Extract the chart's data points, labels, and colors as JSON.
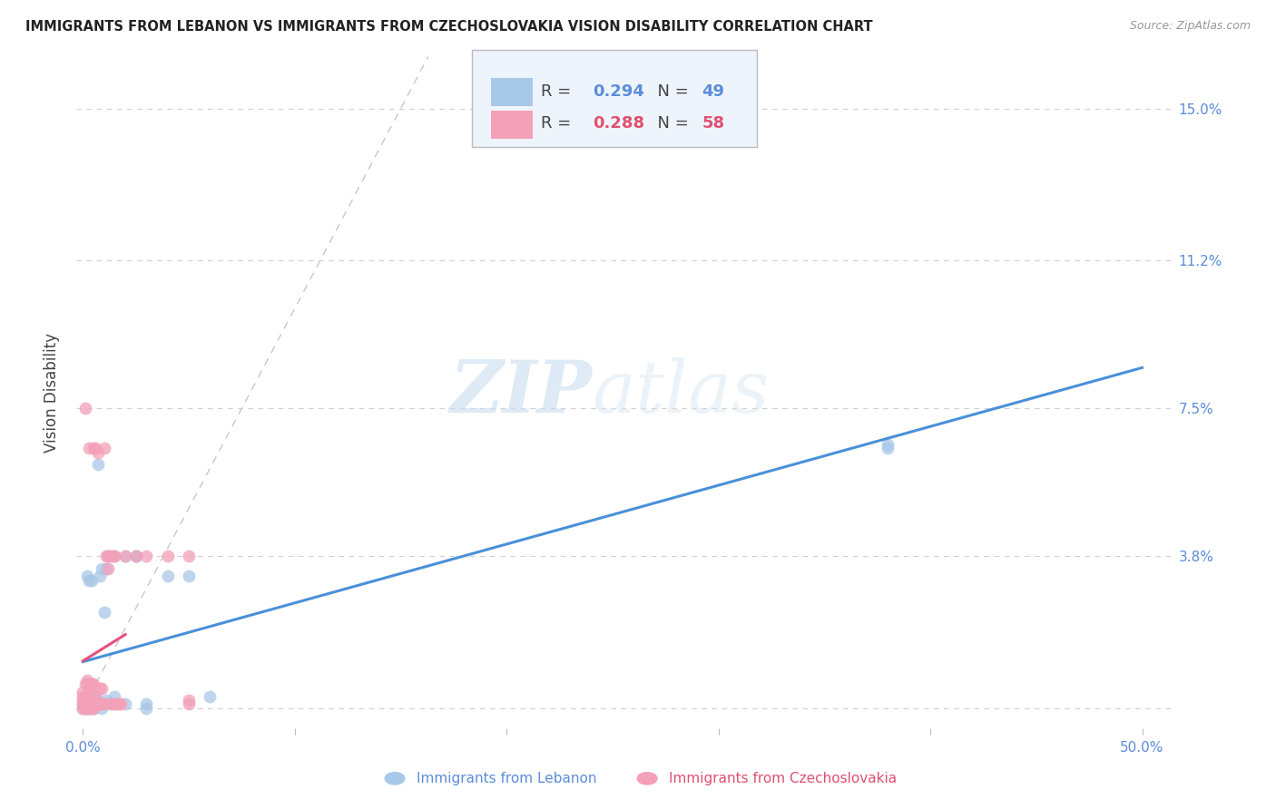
{
  "title": "IMMIGRANTS FROM LEBANON VS IMMIGRANTS FROM CZECHOSLOVAKIA VISION DISABILITY CORRELATION CHART",
  "source": "Source: ZipAtlas.com",
  "xlabel_lebanon": "Immigrants from Lebanon",
  "xlabel_czechoslovakia": "Immigrants from Czechoslovakia",
  "ylabel": "Vision Disability",
  "r_lebanon": 0.294,
  "n_lebanon": 49,
  "r_czechoslovakia": 0.288,
  "n_czechoslovakia": 58,
  "y_ticks": [
    0.0,
    0.038,
    0.075,
    0.112,
    0.15
  ],
  "y_tick_labels": [
    "",
    "3.8%",
    "7.5%",
    "11.2%",
    "15.0%"
  ],
  "xlim": [
    -0.003,
    0.515
  ],
  "ylim": [
    -0.005,
    0.163
  ],
  "color_lebanon": "#a8c8e8",
  "color_czechoslovakia": "#f4a0b8",
  "color_lebanon_line": "#4a90d9",
  "color_czechoslovakia_line": "#e8507a",
  "color_diagonal": "#c8c8c8",
  "watermark_zip": "ZIP",
  "watermark_atlas": "atlas",
  "lebanon_x": [
    0.0,
    0.0,
    0.001,
    0.001,
    0.001,
    0.001,
    0.002,
    0.002,
    0.002,
    0.002,
    0.002,
    0.003,
    0.003,
    0.003,
    0.003,
    0.003,
    0.003,
    0.004,
    0.004,
    0.004,
    0.005,
    0.005,
    0.005,
    0.006,
    0.006,
    0.007,
    0.008,
    0.009,
    0.009,
    0.01,
    0.01,
    0.011,
    0.011,
    0.012,
    0.013,
    0.014,
    0.015,
    0.015,
    0.02,
    0.02,
    0.025,
    0.025,
    0.03,
    0.03,
    0.04,
    0.05,
    0.06,
    0.38,
    0.38
  ],
  "lebanon_y": [
    0.0,
    0.001,
    0.0,
    0.001,
    0.002,
    0.003,
    0.0,
    0.001,
    0.002,
    0.003,
    0.033,
    0.0,
    0.001,
    0.002,
    0.003,
    0.006,
    0.032,
    0.0,
    0.001,
    0.032,
    0.0,
    0.001,
    0.002,
    0.002,
    0.003,
    0.061,
    0.033,
    0.0,
    0.035,
    0.024,
    0.001,
    0.035,
    0.002,
    0.038,
    0.038,
    0.001,
    0.038,
    0.003,
    0.001,
    0.038,
    0.038,
    0.038,
    0.0,
    0.001,
    0.033,
    0.033,
    0.003,
    0.066,
    0.065
  ],
  "czechoslovakia_x": [
    0.0,
    0.0,
    0.0,
    0.0,
    0.0,
    0.001,
    0.001,
    0.001,
    0.001,
    0.001,
    0.001,
    0.002,
    0.002,
    0.002,
    0.002,
    0.002,
    0.002,
    0.003,
    0.003,
    0.003,
    0.003,
    0.003,
    0.003,
    0.004,
    0.004,
    0.004,
    0.005,
    0.005,
    0.005,
    0.005,
    0.006,
    0.006,
    0.006,
    0.007,
    0.007,
    0.008,
    0.008,
    0.009,
    0.009,
    0.01,
    0.01,
    0.011,
    0.012,
    0.012,
    0.013,
    0.014,
    0.015,
    0.015,
    0.016,
    0.017,
    0.018,
    0.02,
    0.025,
    0.03,
    0.04,
    0.05,
    0.05,
    0.05
  ],
  "czechoslovakia_y": [
    0.0,
    0.001,
    0.002,
    0.003,
    0.004,
    0.0,
    0.001,
    0.002,
    0.003,
    0.006,
    0.075,
    0.0,
    0.001,
    0.002,
    0.003,
    0.006,
    0.007,
    0.0,
    0.001,
    0.002,
    0.004,
    0.006,
    0.065,
    0.0,
    0.001,
    0.006,
    0.0,
    0.001,
    0.006,
    0.065,
    0.001,
    0.003,
    0.065,
    0.064,
    0.001,
    0.001,
    0.005,
    0.001,
    0.005,
    0.001,
    0.065,
    0.038,
    0.035,
    0.038,
    0.001,
    0.038,
    0.001,
    0.038,
    0.001,
    0.001,
    0.001,
    0.038,
    0.038,
    0.038,
    0.038,
    0.001,
    0.002,
    0.038
  ],
  "legend_box_color": "#eef4fc",
  "legend_border_color": "#bbbbbb"
}
